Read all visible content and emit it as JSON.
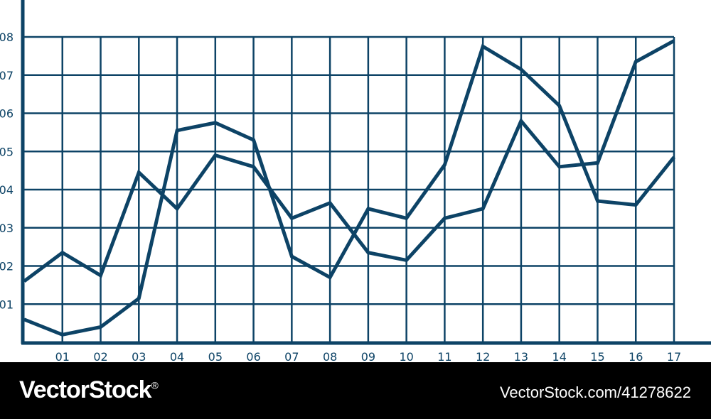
{
  "colors": {
    "stroke": "#0d4366",
    "footer_bg": "#000000",
    "footer_text": "#ffffff"
  },
  "chart_data": {
    "type": "line",
    "title": "",
    "xlabel": "",
    "ylabel": "",
    "x": [
      "",
      "01",
      "02",
      "03",
      "04",
      "05",
      "06",
      "07",
      "08",
      "09",
      "10",
      "11",
      "12",
      "13",
      "14",
      "15",
      "16",
      "17"
    ],
    "x_tick_labels": [
      "01",
      "02",
      "03",
      "04",
      "05",
      "06",
      "07",
      "08",
      "09",
      "10",
      "11",
      "12",
      "13",
      "14",
      "15",
      "16",
      "17"
    ],
    "y_tick_labels": [
      "01",
      "02",
      "03",
      "04",
      "05",
      "06",
      "07",
      "08"
    ],
    "xlim": [
      0,
      17
    ],
    "ylim": [
      0,
      8.6
    ],
    "grid": true,
    "legend": "none",
    "series": [
      {
        "values": [
          1.6,
          2.35,
          1.75,
          4.45,
          3.5,
          4.9,
          4.6,
          3.25,
          3.65,
          2.35,
          2.15,
          3.25,
          3.5,
          5.8,
          4.6,
          4.7,
          7.35,
          7.9
        ]
      },
      {
        "values": [
          0.6,
          0.2,
          0.4,
          1.15,
          5.55,
          5.75,
          5.3,
          2.25,
          1.7,
          3.5,
          3.25,
          4.65,
          7.75,
          7.15,
          6.2,
          3.7,
          3.6,
          4.85
        ]
      }
    ]
  },
  "footer": {
    "brand": "VectorStock",
    "brand_mark": "®",
    "credit": "VectorStock.com/41278622"
  }
}
